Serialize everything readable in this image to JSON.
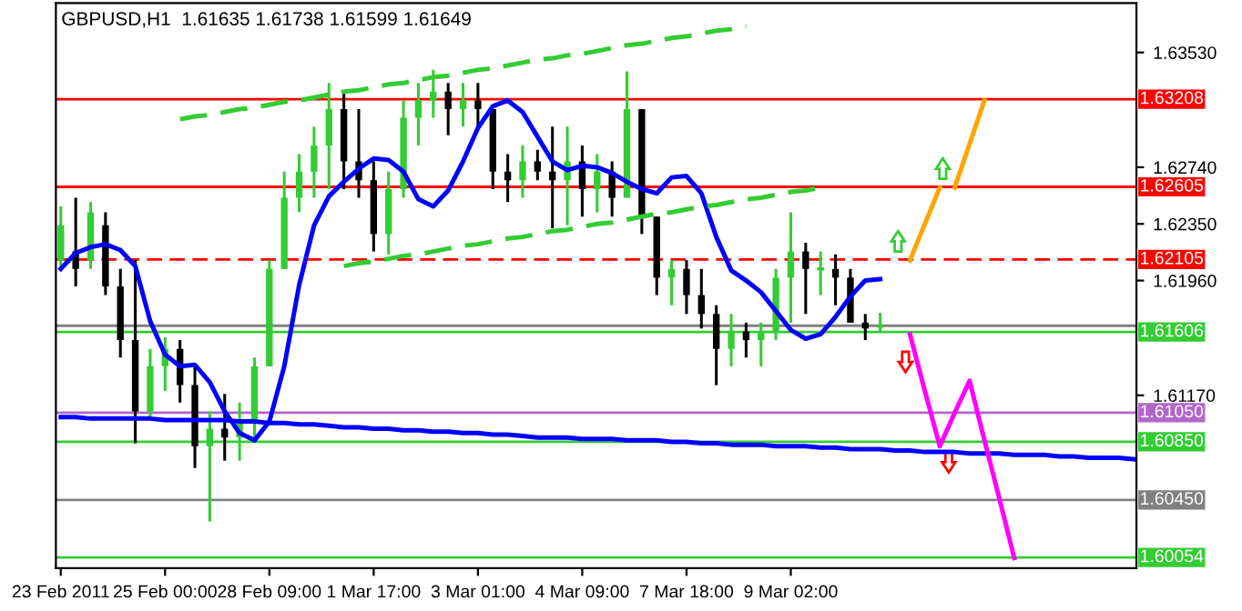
{
  "chart_data": {
    "type": "candlestick",
    "title": "GBPUSD,H1  1.61635 1.61738 1.61599 1.61649",
    "categories": [
      "23 Feb 2011",
      null,
      null,
      null,
      null,
      null,
      null,
      "25 Feb 00:00",
      null,
      null,
      null,
      null,
      null,
      null,
      "28 Feb 09:00",
      null,
      null,
      null,
      null,
      null,
      null,
      "1 Mar 17:00",
      null,
      null,
      null,
      null,
      null,
      null,
      "3 Mar 01:00",
      null,
      null,
      null,
      null,
      null,
      null,
      "4 Mar 09:00",
      null,
      null,
      null,
      null,
      null,
      null,
      "7 Mar 18:00",
      null,
      null,
      null,
      null,
      null,
      null,
      "9 Mar 02:00",
      null,
      null,
      null,
      null,
      null,
      null,
      null,
      null,
      null,
      null,
      null,
      null,
      null,
      null,
      null,
      null,
      null,
      null,
      null,
      null,
      null,
      null,
      null
    ],
    "ohlc": [
      [
        1.621,
        1.6247,
        1.6204,
        1.6234
      ],
      [
        1.6216,
        1.6253,
        1.6192,
        1.6204
      ],
      [
        1.621,
        1.625,
        1.6204,
        1.6243
      ],
      [
        1.6234,
        1.6243,
        1.6186,
        1.6192
      ],
      [
        1.6192,
        1.6204,
        1.6143,
        1.6155
      ],
      [
        1.6155,
        1.621,
        1.6084,
        1.6106
      ],
      [
        1.6106,
        1.6149,
        1.61,
        1.6137
      ],
      [
        1.6137,
        1.6157,
        1.612,
        1.6149
      ],
      [
        1.6149,
        1.6155,
        1.6112,
        1.6124
      ],
      [
        1.6124,
        1.6137,
        1.6067,
        1.6082
      ],
      [
        1.6082,
        1.6106,
        1.603,
        1.6094
      ],
      [
        1.6094,
        1.6118,
        1.6072,
        1.6088
      ],
      [
        1.6088,
        1.6112,
        1.6072,
        1.61
      ],
      [
        1.61,
        1.6143,
        1.6088,
        1.6137
      ],
      [
        1.6137,
        1.621,
        1.6137,
        1.6204
      ],
      [
        1.6204,
        1.6271,
        1.6204,
        1.6253
      ],
      [
        1.6253,
        1.6283,
        1.6243,
        1.6271
      ],
      [
        1.6271,
        1.6302,
        1.6253,
        1.6289
      ],
      [
        1.6289,
        1.6332,
        1.6259,
        1.6314
      ],
      [
        1.6314,
        1.6326,
        1.6259,
        1.6278
      ],
      [
        1.6278,
        1.6314,
        1.6253,
        1.6265
      ],
      [
        1.6265,
        1.6278,
        1.6216,
        1.6228
      ],
      [
        1.6228,
        1.6271,
        1.6214,
        1.6259
      ],
      [
        1.6259,
        1.632,
        1.6253,
        1.6308
      ],
      [
        1.6308,
        1.6332,
        1.6289,
        1.632
      ],
      [
        1.632,
        1.6341,
        1.6308,
        1.6326
      ],
      [
        1.6326,
        1.6332,
        1.6296,
        1.6314
      ],
      [
        1.6314,
        1.6332,
        1.6302,
        1.632
      ],
      [
        1.632,
        1.6332,
        1.6302,
        1.6314
      ],
      [
        1.6314,
        1.6314,
        1.6259,
        1.6271
      ],
      [
        1.6271,
        1.6283,
        1.625,
        1.6265
      ],
      [
        1.6265,
        1.6289,
        1.6253,
        1.6278
      ],
      [
        1.6278,
        1.6286,
        1.6265,
        1.6271
      ],
      [
        1.6271,
        1.6302,
        1.6232,
        1.6265
      ],
      [
        1.6265,
        1.6302,
        1.6234,
        1.6278
      ],
      [
        1.6278,
        1.6289,
        1.624,
        1.6259
      ],
      [
        1.6259,
        1.6283,
        1.6243,
        1.6271
      ],
      [
        1.6271,
        1.6278,
        1.624,
        1.6253
      ],
      [
        1.6253,
        1.634,
        1.6253,
        1.6314
      ],
      [
        1.6314,
        1.6314,
        1.6228,
        1.624
      ],
      [
        1.624,
        1.624,
        1.6186,
        1.6198
      ],
      [
        1.6198,
        1.621,
        1.6179,
        1.6204
      ],
      [
        1.6204,
        1.621,
        1.6173,
        1.6186
      ],
      [
        1.6186,
        1.6204,
        1.6163,
        1.6173
      ],
      [
        1.6173,
        1.6179,
        1.6124,
        1.6149
      ],
      [
        1.6149,
        1.6173,
        1.6137,
        1.6161
      ],
      [
        1.6161,
        1.6167,
        1.6143,
        1.6155
      ],
      [
        1.6155,
        1.6167,
        1.6137,
        1.6161
      ],
      [
        1.6161,
        1.6204,
        1.6155,
        1.6198
      ],
      [
        1.6198,
        1.6243,
        1.6167,
        1.6216
      ],
      [
        1.6216,
        1.6222,
        1.6173,
        1.6204
      ],
      [
        1.6204,
        1.6216,
        1.6186,
        1.6204
      ],
      [
        1.6204,
        1.6214,
        1.6179,
        1.6198
      ],
      [
        1.6198,
        1.6204,
        1.6167,
        1.6167
      ],
      [
        1.6167,
        1.6173,
        1.6155,
        1.6163
      ],
      [
        1.61635,
        1.61738,
        1.61599,
        1.61649
      ],
      null,
      null,
      null,
      null,
      null,
      null,
      null,
      null,
      null,
      null,
      null,
      null,
      null,
      null,
      null,
      null,
      null
    ],
    "series": [
      {
        "type": "line",
        "color": "#0000ff",
        "values": [
          1.6204,
          1.6215,
          1.6219,
          1.6221,
          1.6217,
          1.6206,
          1.6168,
          1.6145,
          1.6137,
          1.6138,
          1.6126,
          1.6106,
          1.6091,
          1.6086,
          1.6099,
          1.6137,
          1.6193,
          1.6234,
          1.6254,
          1.6264,
          1.6273,
          1.628,
          1.6279,
          1.6271,
          1.6252,
          1.6247,
          1.6258,
          1.6278,
          1.6301,
          1.6316,
          1.632,
          1.6312,
          1.6295,
          1.6278,
          1.6272,
          1.6275,
          1.6274,
          1.627,
          1.6264,
          1.6259,
          1.6256,
          1.6267,
          1.6268,
          1.6256,
          1.6226,
          1.6203,
          1.6196,
          1.6188,
          1.6175,
          1.6162,
          1.6156,
          1.6159,
          1.6171,
          1.6185,
          1.6196,
          1.6197,
          null,
          null,
          null,
          null,
          null,
          null,
          null,
          null,
          null,
          null,
          null,
          null,
          null,
          null,
          null,
          null,
          null
        ]
      },
      {
        "type": "line",
        "color": "#0000ff",
        "values": [
          1.6102,
          1.6102,
          1.6101,
          1.6101,
          1.6101,
          1.6101,
          1.6101,
          1.61,
          1.61,
          1.61,
          1.61,
          1.61,
          1.6099,
          1.6099,
          1.6098,
          1.6098,
          1.6097,
          1.6097,
          1.6096,
          1.6095,
          1.6095,
          1.6094,
          1.6094,
          1.6093,
          1.6093,
          1.6092,
          1.6092,
          1.6091,
          1.6091,
          1.609,
          1.609,
          1.6089,
          1.6088,
          1.6088,
          1.6088,
          1.6087,
          1.6087,
          1.6087,
          1.6086,
          1.6086,
          1.6086,
          1.6085,
          1.6085,
          1.6084,
          1.6084,
          1.6083,
          1.6083,
          1.6083,
          1.6082,
          1.6082,
          1.6082,
          1.6081,
          1.6081,
          1.608,
          1.608,
          1.608,
          1.6079,
          1.6079,
          1.6078,
          1.6078,
          1.6078,
          1.6077,
          1.6077,
          1.6077,
          1.6076,
          1.6076,
          1.6076,
          1.6075,
          1.6075,
          1.6074,
          1.6074,
          1.6074,
          1.6073
        ]
      },
      {
        "type": "line",
        "color": "#33cc33",
        "line_style": "dashed",
        "values": [
          null,
          null,
          null,
          null,
          null,
          null,
          null,
          null,
          1.6307,
          1.6309,
          1.631,
          1.6312,
          1.6314,
          1.6315,
          1.6317,
          1.6319,
          1.632,
          1.6322,
          1.6324,
          1.6326,
          1.6327,
          1.6329,
          1.6331,
          1.6332,
          1.6334,
          1.6336,
          1.6337,
          1.6339,
          1.6341,
          1.6342,
          1.6344,
          1.6346,
          1.6348,
          1.6349,
          1.6351,
          1.6352,
          1.6354,
          1.6356,
          1.6358,
          1.6359,
          1.6361,
          1.6363,
          1.6364,
          1.6366,
          1.6368,
          1.6369,
          1.6371,
          null,
          null,
          null,
          null,
          null,
          null,
          null,
          null,
          null,
          null,
          null,
          null,
          null,
          null,
          null,
          null,
          null,
          null,
          null,
          null,
          null,
          null,
          null,
          null,
          null,
          null
        ]
      },
      {
        "type": "line",
        "color": "#33cc33",
        "line_style": "dashed",
        "values": [
          null,
          null,
          null,
          null,
          null,
          null,
          null,
          null,
          null,
          null,
          null,
          null,
          null,
          null,
          null,
          null,
          null,
          null,
          null,
          1.6206,
          1.6208,
          1.6209,
          1.6211,
          1.6213,
          1.6214,
          1.6216,
          1.6218,
          1.622,
          1.6221,
          1.6223,
          1.6225,
          1.6226,
          1.6228,
          1.623,
          1.6231,
          1.6233,
          1.6235,
          1.6236,
          1.6238,
          1.624,
          1.6242,
          1.6243,
          1.6245,
          1.6247,
          1.6248,
          1.625,
          1.6252,
          1.6253,
          1.6255,
          1.6257,
          1.6258,
          1.626,
          null,
          null,
          null,
          null,
          null,
          null,
          null,
          null,
          null,
          null,
          null,
          null,
          null,
          null,
          null,
          null,
          null,
          null,
          null,
          null,
          null
        ]
      },
      {
        "type": "line",
        "color": "#ffa500",
        "values": [
          null,
          null,
          null,
          null,
          null,
          null,
          null,
          null,
          null,
          null,
          null,
          null,
          null,
          null,
          null,
          null,
          null,
          null,
          null,
          null,
          null,
          null,
          null,
          null,
          null,
          null,
          null,
          null,
          null,
          null,
          null,
          null,
          null,
          null,
          null,
          null,
          null,
          null,
          null,
          null,
          null,
          null,
          null,
          null,
          null,
          null,
          null,
          null,
          null,
          null,
          null,
          null,
          null,
          null,
          null,
          null,
          null,
          1.621,
          1.6235,
          1.626,
          null,
          null,
          null,
          null,
          null,
          null,
          null,
          null,
          null,
          null,
          null,
          null,
          null
        ]
      },
      {
        "type": "line",
        "color": "#ffa500",
        "values": [
          null,
          null,
          null,
          null,
          null,
          null,
          null,
          null,
          null,
          null,
          null,
          null,
          null,
          null,
          null,
          null,
          null,
          null,
          null,
          null,
          null,
          null,
          null,
          null,
          null,
          null,
          null,
          null,
          null,
          null,
          null,
          null,
          null,
          null,
          null,
          null,
          null,
          null,
          null,
          null,
          null,
          null,
          null,
          null,
          null,
          null,
          null,
          null,
          null,
          null,
          null,
          null,
          null,
          null,
          null,
          null,
          null,
          null,
          null,
          null,
          1.626,
          1.629,
          1.632,
          null,
          null,
          null,
          null,
          null,
          null,
          null,
          null,
          null,
          null
        ]
      },
      {
        "type": "line",
        "color": "#ff00ff",
        "values": [
          null,
          null,
          null,
          null,
          null,
          null,
          null,
          null,
          null,
          null,
          null,
          null,
          null,
          null,
          null,
          null,
          null,
          null,
          null,
          null,
          null,
          null,
          null,
          null,
          null,
          null,
          null,
          null,
          null,
          null,
          null,
          null,
          null,
          null,
          null,
          null,
          null,
          null,
          null,
          null,
          null,
          null,
          null,
          null,
          null,
          null,
          null,
          null,
          null,
          null,
          null,
          null,
          null,
          null,
          null,
          null,
          null,
          1.6159,
          1.612,
          1.6082,
          1.6105,
          1.6127,
          1.6086,
          1.6046,
          1.6005,
          null,
          null,
          null,
          null,
          null,
          null,
          null,
          null
        ]
      }
    ],
    "ref_lines": [
      {
        "axis": "y",
        "value": 1.63208,
        "label": "1.63208",
        "color": "#ff0000"
      },
      {
        "axis": "y",
        "value": 1.62605,
        "label": "1.62605",
        "color": "#ff0000"
      },
      {
        "axis": "y",
        "value": 1.62105,
        "label": "1.62105",
        "color": "#ff0000",
        "line_style": "dashed"
      },
      {
        "axis": "y",
        "value": 1.61649,
        "color": "#808080"
      },
      {
        "axis": "y",
        "value": 1.61606,
        "label": "1.61606",
        "color": "#33cc33"
      },
      {
        "axis": "y",
        "value": 1.6105,
        "label": "1.61050",
        "color": "#b266cc"
      },
      {
        "axis": "y",
        "value": 1.6085,
        "label": "1.60850",
        "color": "#33cc33"
      },
      {
        "axis": "y",
        "value": 1.6045,
        "label": "1.60450",
        "color": "#808080"
      },
      {
        "axis": "y",
        "value": 1.60054,
        "label": "1.60054",
        "color": "#33cc33"
      }
    ],
    "ylim": [
      1.5998,
      1.6387
    ],
    "yticks": [
      {
        "value": 1.6353,
        "label": "1.63530"
      },
      {
        "value": 1.6274,
        "label": "1.62740"
      },
      {
        "value": 1.6235,
        "label": "1.62350"
      },
      {
        "value": 1.6196,
        "label": "1.61960"
      },
      {
        "value": 1.6117,
        "label": "1.61170"
      }
    ],
    "grid": false,
    "legend": false
  }
}
